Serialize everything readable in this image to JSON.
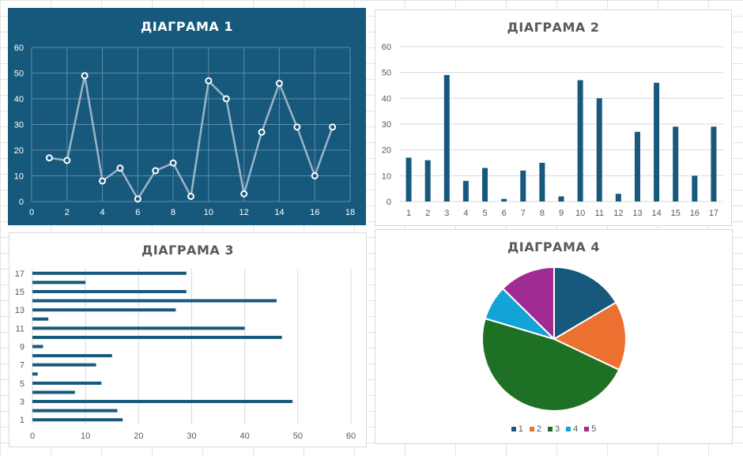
{
  "chart_data": [
    {
      "type": "scatter",
      "title": "ДІАГРАМА 1",
      "x": [
        1,
        2,
        3,
        4,
        5,
        6,
        7,
        8,
        9,
        10,
        11,
        12,
        13,
        14,
        15,
        16,
        17
      ],
      "y": [
        17,
        16,
        49,
        8,
        13,
        1,
        12,
        15,
        2,
        47,
        40,
        3,
        27,
        46,
        29,
        10,
        29
      ],
      "xlim": [
        0,
        18
      ],
      "ylim": [
        0,
        60
      ],
      "xticks": [
        "0",
        "2",
        "4",
        "6",
        "8",
        "10",
        "12",
        "14",
        "16",
        "18"
      ],
      "yticks": [
        "0",
        "10",
        "20",
        "30",
        "40",
        "50",
        "60"
      ],
      "grid": true,
      "colors": {
        "background": "#17597d",
        "line": "#9bb4c6",
        "marker_fill": "#ffffff",
        "marker_stroke": "#ffffff"
      }
    },
    {
      "type": "bar",
      "title": "ДІАГРАМА 2",
      "categories": [
        "1",
        "2",
        "3",
        "4",
        "5",
        "6",
        "7",
        "8",
        "9",
        "10",
        "11",
        "12",
        "13",
        "14",
        "15",
        "16",
        "17"
      ],
      "values": [
        17,
        16,
        49,
        8,
        13,
        1,
        12,
        15,
        2,
        47,
        40,
        3,
        27,
        46,
        29,
        10,
        29
      ],
      "ylim": [
        0,
        60
      ],
      "yticks": [
        "0",
        "10",
        "20",
        "30",
        "40",
        "50",
        "60"
      ],
      "grid": true,
      "colors": {
        "bar": "#17597d"
      }
    },
    {
      "type": "bar",
      "orientation": "horizontal",
      "title": "ДІАГРАМА 3",
      "categories": [
        "1",
        "2",
        "3",
        "4",
        "5",
        "6",
        "7",
        "8",
        "9",
        "10",
        "11",
        "12",
        "13",
        "14",
        "15",
        "16",
        "17"
      ],
      "category_labels": [
        "1",
        "",
        "3",
        "",
        "5",
        "",
        "7",
        "",
        "9",
        "",
        "11",
        "",
        "13",
        "",
        "15",
        "",
        "17"
      ],
      "values": [
        17,
        16,
        49,
        8,
        13,
        1,
        12,
        15,
        2,
        47,
        40,
        3,
        27,
        46,
        29,
        10,
        29
      ],
      "xlim": [
        0,
        60
      ],
      "xticks": [
        "0",
        "10",
        "20",
        "30",
        "40",
        "50",
        "60"
      ],
      "grid": true,
      "colors": {
        "bar": "#17597d"
      }
    },
    {
      "type": "pie",
      "title": "ДІАГРАМА 4",
      "labels": [
        "1",
        "2",
        "3",
        "4",
        "5"
      ],
      "values": [
        17,
        16,
        49,
        8,
        13
      ],
      "legend": "bottom",
      "colors": [
        "#17597d",
        "#ec7130",
        "#1e7124",
        "#12a3d7",
        "#a02b93"
      ]
    }
  ]
}
